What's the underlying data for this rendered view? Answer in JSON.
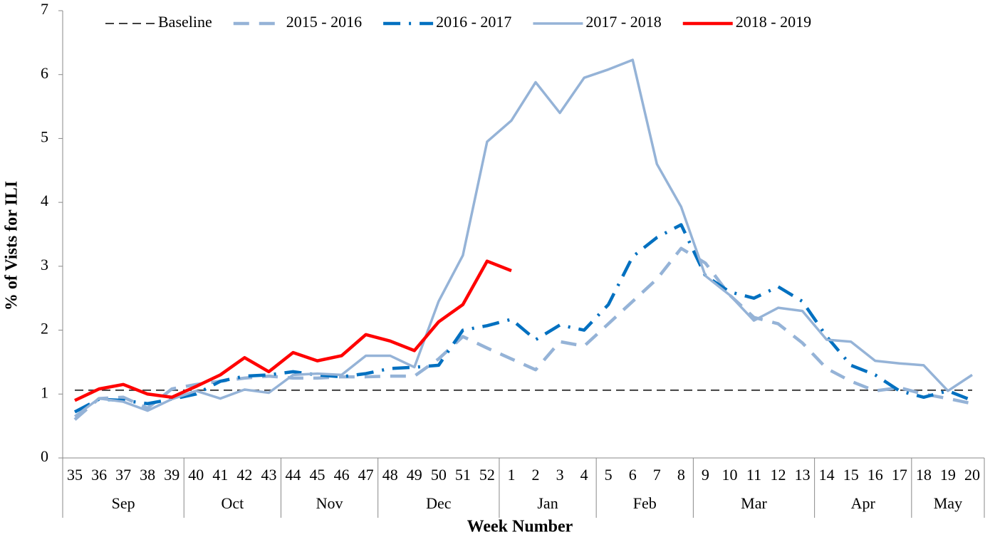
{
  "chart_data": {
    "type": "line",
    "x_label": "Week Number",
    "y_label": "% of Vists for ILI",
    "categories": [
      "35",
      "36",
      "37",
      "38",
      "39",
      "40",
      "41",
      "42",
      "43",
      "44",
      "45",
      "46",
      "47",
      "48",
      "49",
      "50",
      "51",
      "52",
      "1",
      "2",
      "3",
      "4",
      "5",
      "6",
      "7",
      "8",
      "9",
      "10",
      "11",
      "12",
      "13",
      "14",
      "15",
      "16",
      "17",
      "18",
      "19",
      "20"
    ],
    "groups": [
      {
        "label": "Sep",
        "count": 5
      },
      {
        "label": "Oct",
        "count": 4
      },
      {
        "label": "Nov",
        "count": 4
      },
      {
        "label": "Dec",
        "count": 5
      },
      {
        "label": "Jan",
        "count": 4
      },
      {
        "label": "Feb",
        "count": 4
      },
      {
        "label": "Mar",
        "count": 5
      },
      {
        "label": "Apr",
        "count": 4
      },
      {
        "label": "May",
        "count": 3
      }
    ],
    "ylim": [
      0,
      7
    ],
    "yticks": [
      0,
      1,
      2,
      3,
      4,
      5,
      6,
      7
    ],
    "grid": false,
    "legend": "top",
    "series": [
      {
        "name": "Baseline",
        "color": "#404040",
        "style": "dashed-thin",
        "values": [
          1.06,
          1.06,
          1.06,
          1.06,
          1.06,
          1.06,
          1.06,
          1.06,
          1.06,
          1.06,
          1.06,
          1.06,
          1.06,
          1.06,
          1.06,
          1.06,
          1.06,
          1.06,
          1.06,
          1.06,
          1.06,
          1.06,
          1.06,
          1.06,
          1.06,
          1.06,
          1.06,
          1.06,
          1.06,
          1.06,
          1.06,
          1.06,
          1.06,
          1.06,
          1.06,
          1.06,
          1.06,
          1.06
        ]
      },
      {
        "name": "2015 - 2016",
        "color": "#95b3d7",
        "style": "dashed",
        "values": [
          0.6,
          0.93,
          0.95,
          0.78,
          1.08,
          1.15,
          1.2,
          1.25,
          1.28,
          1.25,
          1.25,
          1.27,
          1.27,
          1.28,
          1.28,
          1.55,
          1.9,
          1.72,
          1.55,
          1.38,
          1.82,
          1.75,
          2.1,
          2.45,
          2.8,
          3.28,
          3.05,
          2.55,
          2.2,
          2.1,
          1.8,
          1.4,
          1.2,
          1.05,
          1.1,
          1.0,
          0.93,
          0.85
        ]
      },
      {
        "name": "2016 - 2017",
        "color": "#0070c0",
        "style": "dash-dot",
        "values": [
          0.72,
          0.92,
          0.9,
          0.85,
          0.92,
          1.0,
          1.2,
          1.28,
          1.3,
          1.35,
          1.3,
          1.27,
          1.32,
          1.4,
          1.42,
          1.45,
          2.0,
          2.07,
          2.17,
          1.85,
          2.08,
          2.0,
          2.4,
          3.15,
          3.45,
          3.65,
          2.85,
          2.6,
          2.5,
          2.68,
          2.45,
          1.9,
          1.45,
          1.3,
          1.05,
          0.95,
          1.05,
          0.9
        ]
      },
      {
        "name": "2017 - 2018",
        "color": "#95b3d7",
        "style": "solid",
        "values": [
          0.65,
          0.93,
          0.88,
          0.74,
          0.92,
          1.05,
          0.93,
          1.07,
          1.02,
          1.3,
          1.32,
          1.3,
          1.6,
          1.6,
          1.42,
          2.45,
          3.17,
          4.95,
          5.28,
          5.88,
          5.4,
          5.95,
          6.08,
          6.23,
          4.6,
          3.93,
          2.85,
          2.55,
          2.15,
          2.35,
          2.3,
          1.85,
          1.82,
          1.52,
          1.48,
          1.45,
          1.05,
          1.3
        ]
      },
      {
        "name": "2018 - 2019",
        "color": "#ff0000",
        "style": "solid-thick",
        "values": [
          0.9,
          1.08,
          1.15,
          1.0,
          0.95,
          1.12,
          1.3,
          1.57,
          1.35,
          1.65,
          1.52,
          1.6,
          1.93,
          1.83,
          1.68,
          2.13,
          2.4,
          3.08,
          2.93,
          null,
          null,
          null,
          null,
          null,
          null,
          null,
          null,
          null,
          null,
          null,
          null,
          null,
          null,
          null,
          null,
          null,
          null,
          null
        ]
      }
    ]
  }
}
